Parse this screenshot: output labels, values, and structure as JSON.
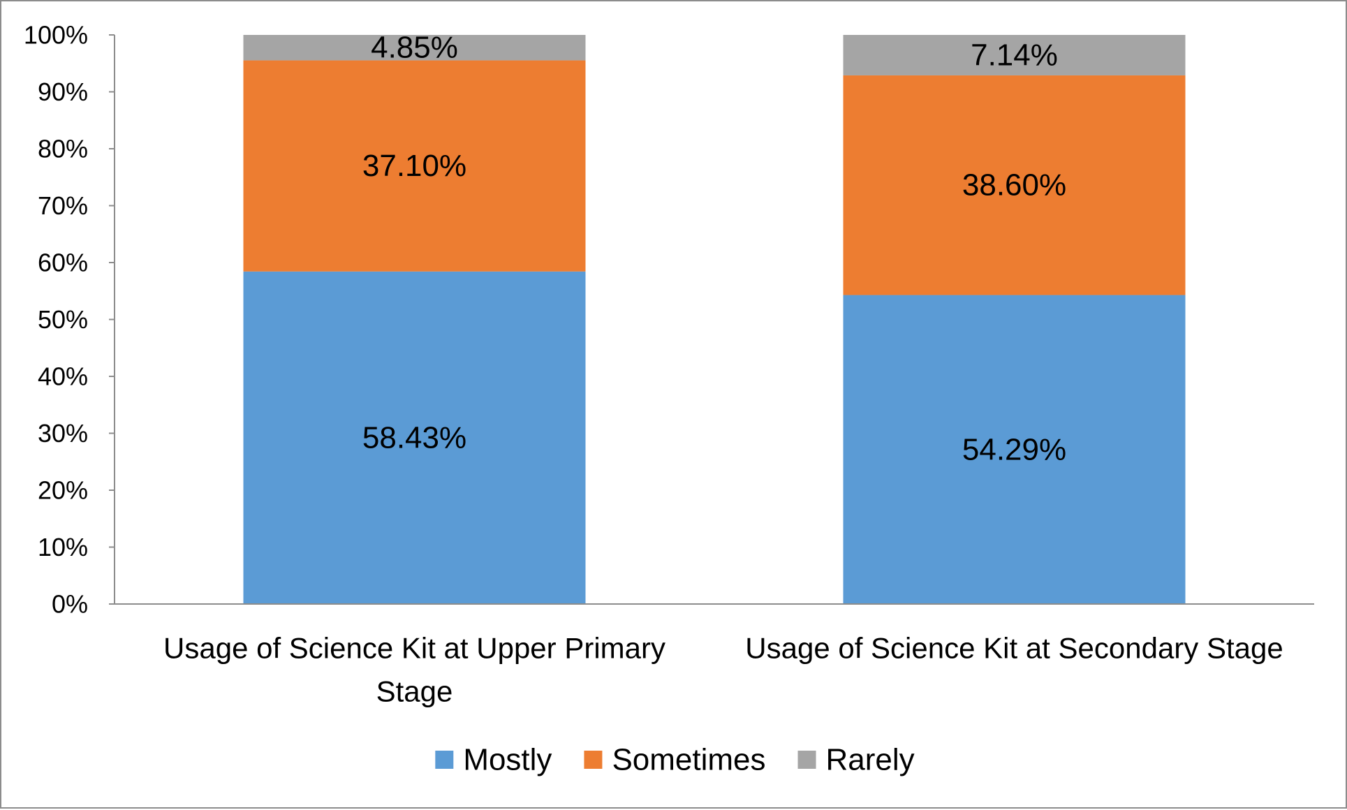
{
  "chart_data": {
    "type": "bar",
    "stacked": true,
    "title": "",
    "xlabel": "",
    "ylabel": "",
    "ylim": [
      0,
      100
    ],
    "y_ticks": [
      "0%",
      "10%",
      "20%",
      "30%",
      "40%",
      "50%",
      "60%",
      "70%",
      "80%",
      "90%",
      "100%"
    ],
    "categories": [
      "Usage of Science Kit at Upper Primary Stage",
      "Usage of Science Kit at Secondary Stage"
    ],
    "category_lines": [
      [
        "Usage of Science Kit at Upper Primary",
        "Stage"
      ],
      [
        "Usage of Science Kit at Secondary Stage"
      ]
    ],
    "series": [
      {
        "name": "Mostly",
        "color": "#5b9bd5",
        "values": [
          58.43,
          54.29
        ],
        "labels": [
          "58.43%",
          "54.29%"
        ]
      },
      {
        "name": "Sometimes",
        "color": "#ed7d31",
        "values": [
          37.1,
          38.6
        ],
        "labels": [
          "37.10%",
          "38.60%"
        ]
      },
      {
        "name": "Rarely",
        "color": "#a5a5a5",
        "values": [
          4.85,
          7.14
        ],
        "labels": [
          "4.85%",
          "7.14%"
        ]
      }
    ],
    "legend_position": "bottom",
    "grid": false
  }
}
